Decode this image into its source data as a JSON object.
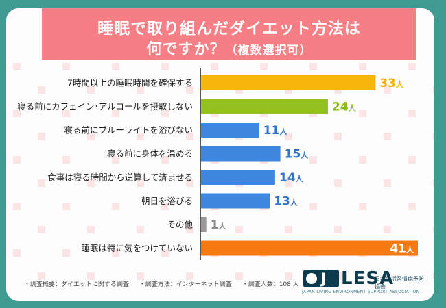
{
  "title": {
    "line1": "睡眠で取り組んだダイエット方法は",
    "line2": "何ですか？",
    "line2_sub": "（複数選択可）"
  },
  "chart_data": {
    "type": "bar",
    "orientation": "horizontal",
    "unit": "人",
    "categories": [
      "7時間以上の睡眠時間を確保する",
      "寝る前にカフェイン･アルコールを摂取しない",
      "寝る前にブルーライトを浴びない",
      "寝る前に身体を温める",
      "食事は寝る時間から逆算して済ませる",
      "朝日を浴びる",
      "その他",
      "睡眠は特に気をつけていない"
    ],
    "values": [
      33,
      24,
      11,
      15,
      14,
      13,
      1,
      41
    ],
    "bar_colors": [
      "#f7b60c",
      "#95c11f",
      "#3d87de",
      "#3d87de",
      "#3d87de",
      "#3d87de",
      "#9a9a9a",
      "#f57b10"
    ],
    "label_colors": [
      "#f4b000",
      "#8cbd1a",
      "#2f74c8",
      "#2f74c8",
      "#2f74c8",
      "#2f74c8",
      "#8a8a8a",
      "#ffffff"
    ],
    "xlim": [
      0,
      41
    ]
  },
  "footer": {
    "note1": "・調査概要：ダイエットに関する調査",
    "note2": "・調査方法：インターネット調査",
    "note3": "・調査人数：108 人"
  },
  "logo": {
    "mark": "J",
    "name": "LESA",
    "jp_name": "日本生活習慣病予防協会",
    "en_name": "JAPAN LIVING ENVIRONMENT SUPPORT ASSOCIATION"
  },
  "colors": {
    "background": "#3f9a92",
    "title_bg": "#f57f85",
    "axis": "#222222"
  }
}
